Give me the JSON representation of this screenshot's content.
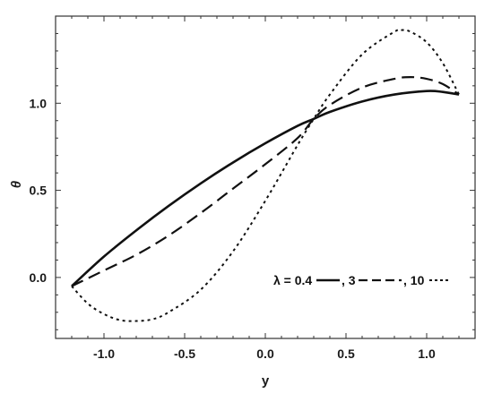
{
  "chart_data": {
    "type": "line",
    "xlabel": "y",
    "ylabel": "θ",
    "xlim": [
      -1.3,
      1.3
    ],
    "ylim": [
      -0.35,
      1.5
    ],
    "grid": false,
    "xticks": [
      -1.0,
      -0.5,
      0.0,
      0.5,
      1.0
    ],
    "xtick_labels": [
      "-1.0",
      "-0.5",
      "0.0",
      "0.5",
      "1.0"
    ],
    "yticks": [
      0.0,
      0.5,
      1.0
    ],
    "ytick_labels": [
      "0.0",
      "0.5",
      "1.0"
    ],
    "legend": {
      "placement": "bottom-right",
      "prefix": "λ = 0.4",
      "entries": [
        "0.4",
        ", 3",
        ", 10"
      ]
    },
    "series": [
      {
        "name": "0.4",
        "style": "solid",
        "x": [
          -1.2,
          -1.0,
          -0.8,
          -0.6,
          -0.4,
          -0.2,
          0.0,
          0.2,
          0.3,
          0.4,
          0.6,
          0.8,
          1.0,
          1.1,
          1.2
        ],
        "y": [
          -0.05,
          0.12,
          0.27,
          0.41,
          0.54,
          0.66,
          0.77,
          0.87,
          0.91,
          0.95,
          1.01,
          1.05,
          1.07,
          1.065,
          1.05
        ]
      },
      {
        "name": "3",
        "style": "dashed",
        "x": [
          -1.2,
          -1.0,
          -0.8,
          -0.6,
          -0.4,
          -0.2,
          0.0,
          0.2,
          0.3,
          0.4,
          0.6,
          0.8,
          0.9,
          1.0,
          1.1,
          1.2
        ],
        "y": [
          -0.05,
          0.04,
          0.13,
          0.24,
          0.37,
          0.51,
          0.65,
          0.8,
          0.91,
          0.99,
          1.09,
          1.14,
          1.15,
          1.14,
          1.11,
          1.05
        ]
      },
      {
        "name": "10",
        "style": "dotted",
        "x": [
          -1.2,
          -1.1,
          -1.0,
          -0.9,
          -0.8,
          -0.7,
          -0.6,
          -0.4,
          -0.2,
          0.0,
          0.2,
          0.3,
          0.4,
          0.6,
          0.8,
          0.85,
          0.9,
          1.0,
          1.1,
          1.2
        ],
        "y": [
          -0.05,
          -0.15,
          -0.21,
          -0.245,
          -0.25,
          -0.24,
          -0.2,
          -0.07,
          0.15,
          0.44,
          0.76,
          0.91,
          1.05,
          1.28,
          1.41,
          1.42,
          1.41,
          1.35,
          1.23,
          1.05
        ]
      }
    ],
    "colors": {
      "line": "#111111",
      "frame": "#333333"
    }
  }
}
